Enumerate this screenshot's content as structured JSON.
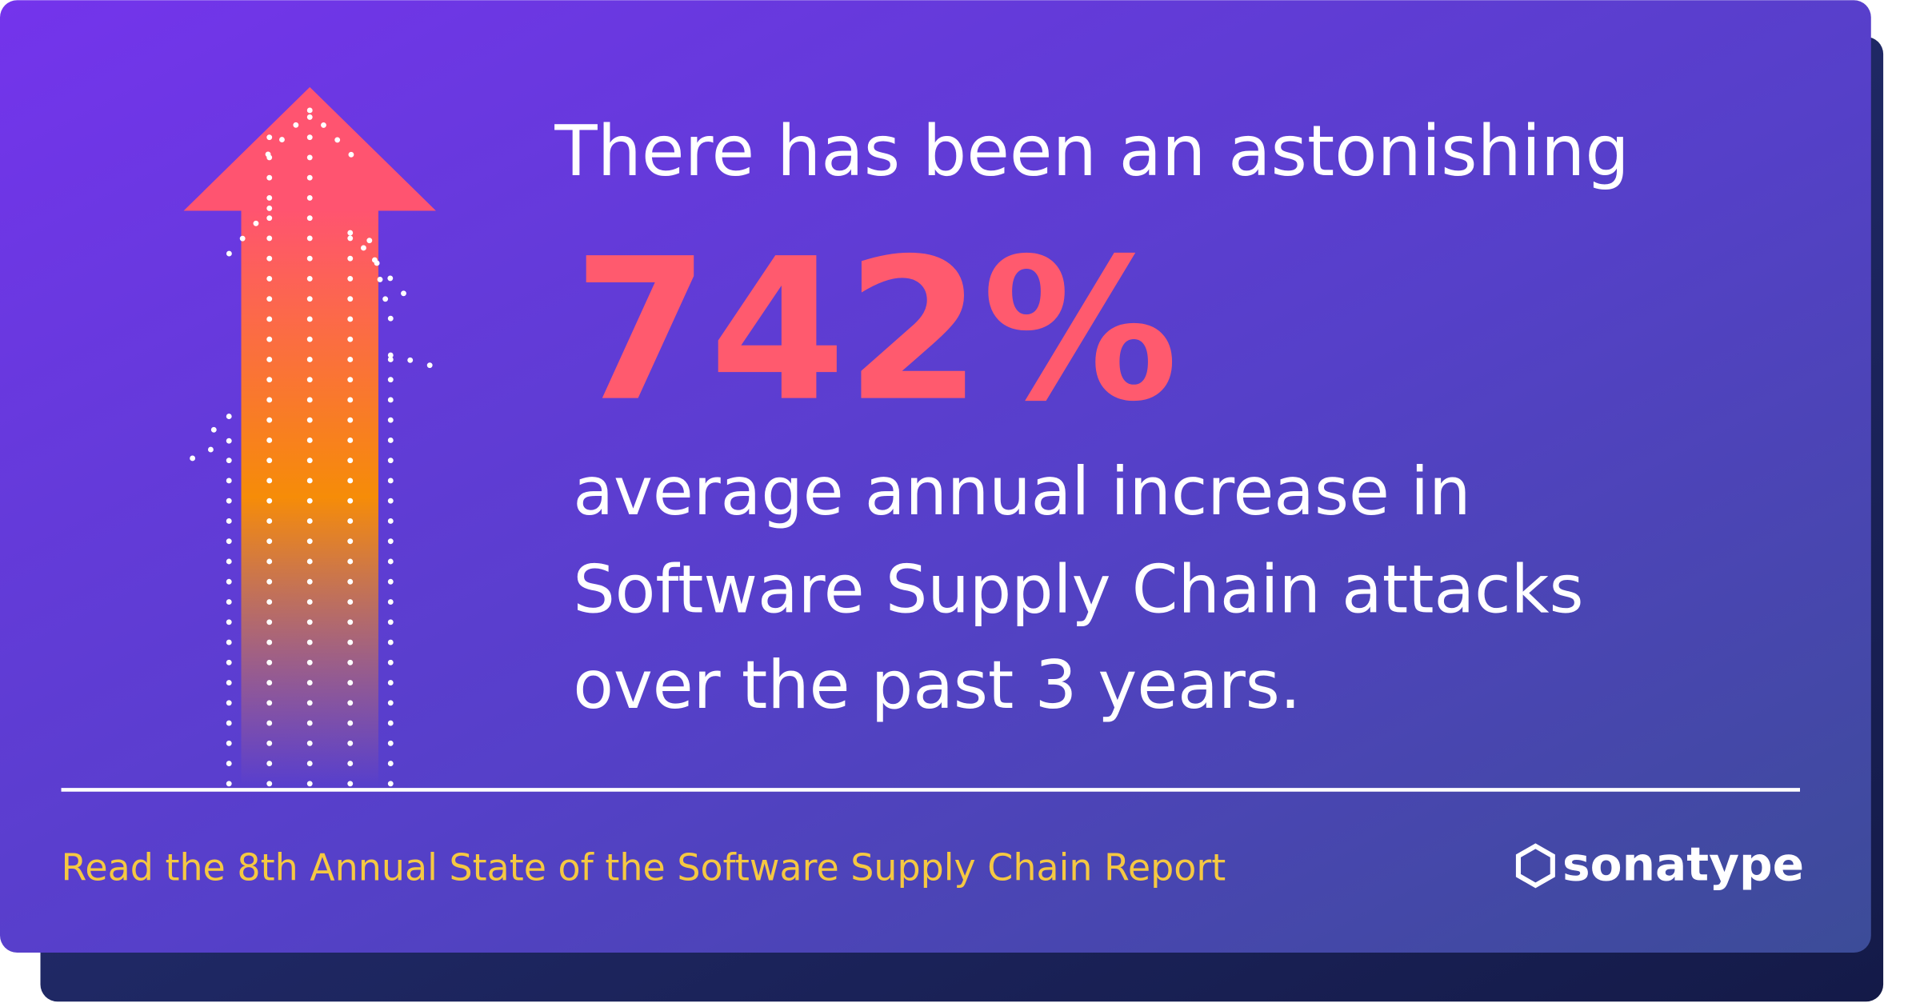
{
  "headline": "There has been an astonishing",
  "stat": "742%",
  "description": [
    "average annual increase in",
    "Software Supply Chain attacks",
    "over the past 3 years."
  ],
  "footer": {
    "link": "Read the 8th Annual State of the Software Supply Chain Report",
    "brand": "sonatype"
  }
}
